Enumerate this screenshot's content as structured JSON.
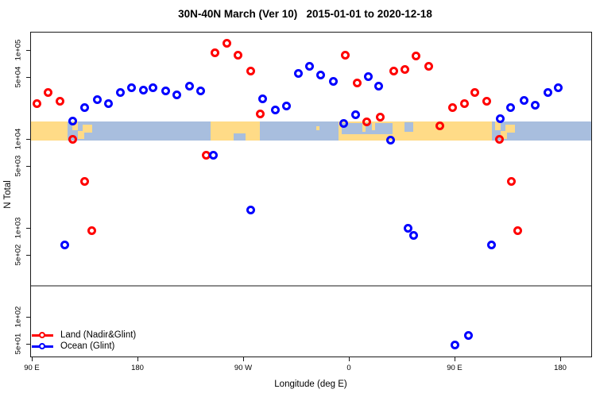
{
  "chart_data": {
    "type": "scatter",
    "title": "30N-40N March (Ver 10)   2015-01-01 to 2020-12-18",
    "xlabel": "Longitude (deg E)",
    "ylabel": "N Total",
    "y_scale": "log",
    "x_axis": {
      "range": [
        88.6,
        567
      ],
      "ticks": [
        {
          "pos": 90,
          "label": "90 E"
        },
        {
          "pos": 180,
          "label": "180"
        },
        {
          "pos": 270,
          "label": "90 W"
        },
        {
          "pos": 360,
          "label": "0"
        },
        {
          "pos": 450,
          "label": "90 E"
        },
        {
          "pos": 540,
          "label": "180"
        }
      ]
    },
    "y_axis": {
      "range": [
        35,
        160000
      ],
      "ticks": [
        {
          "value": 100000,
          "label": "1e+05"
        },
        {
          "value": 50000,
          "label": "5e+04"
        },
        {
          "value": 10000,
          "label": "1e+04"
        },
        {
          "value": 5000,
          "label": "5e+03"
        },
        {
          "value": 1000,
          "label": "1e+03"
        },
        {
          "value": 500,
          "label": "5e+02"
        },
        {
          "value": 100,
          "label": "1e+02"
        },
        {
          "value": 50,
          "label": "5e+01"
        }
      ]
    },
    "hline": {
      "value": 223,
      "color": "#8c8c8c"
    },
    "legend_position": "bottom-left",
    "series": [
      {
        "name": "Land (Nadir&Glint)",
        "color": "#ff0000",
        "points": [
          [
            94.7,
            25000
          ],
          [
            104.0,
            33000
          ],
          [
            114.0,
            26500
          ],
          [
            124.7,
            10000
          ],
          [
            135.0,
            3300
          ],
          [
            141.0,
            930
          ],
          [
            238.7,
            6600
          ],
          [
            246.3,
            94000
          ],
          [
            256.0,
            118000
          ],
          [
            265.9,
            87000
          ],
          [
            276.1,
            58000
          ],
          [
            284.4,
            19000
          ],
          [
            356.8,
            87000
          ],
          [
            366.9,
            43000
          ],
          [
            375.3,
            15500
          ],
          [
            386.8,
            17500
          ],
          [
            398.5,
            58000
          ],
          [
            407.5,
            60000
          ],
          [
            417.5,
            85000
          ],
          [
            427.8,
            65000
          ],
          [
            437.3,
            14000
          ],
          [
            448.6,
            22500
          ],
          [
            458.3,
            25000
          ],
          [
            467.3,
            33000
          ],
          [
            477.2,
            26500
          ],
          [
            488.0,
            10000
          ],
          [
            498.4,
            3300
          ],
          [
            504.1,
            940
          ]
        ]
      },
      {
        "name": "Ocean (Glint)",
        "color": "#0000ff",
        "points": [
          [
            117.9,
            645
          ],
          [
            124.7,
            16000
          ],
          [
            134.9,
            22500
          ],
          [
            145.7,
            27500
          ],
          [
            155.2,
            25000
          ],
          [
            165.3,
            33500
          ],
          [
            175.1,
            37500
          ],
          [
            185.2,
            35500
          ],
          [
            193.5,
            37300
          ],
          [
            204.1,
            34500
          ],
          [
            213.4,
            31000
          ],
          [
            224.4,
            39000
          ],
          [
            234.1,
            34700
          ],
          [
            244.3,
            6600
          ],
          [
            276.5,
            1600
          ],
          [
            286.9,
            28400
          ],
          [
            297.1,
            21300
          ],
          [
            306.6,
            23600
          ],
          [
            317.2,
            54000
          ],
          [
            326.4,
            66000
          ],
          [
            335.9,
            52000
          ],
          [
            346.7,
            44300
          ],
          [
            355.7,
            15000
          ],
          [
            365.6,
            18700
          ],
          [
            376.9,
            50000
          ],
          [
            385.7,
            39000
          ],
          [
            395.6,
            9700
          ],
          [
            410.1,
            990
          ],
          [
            415.3,
            820
          ],
          [
            450.2,
            48
          ],
          [
            462.0,
            62
          ],
          [
            481.6,
            640
          ],
          [
            488.7,
            17000
          ],
          [
            497.7,
            22500
          ],
          [
            509.5,
            27000
          ],
          [
            518.5,
            24000
          ],
          [
            529.3,
            33500
          ],
          [
            538.4,
            37500
          ]
        ]
      }
    ],
    "map_band": {
      "description": "30N-40N land/ocean strip",
      "value_range": [
        9500,
        15700
      ],
      "land_color": "#ffdb87",
      "ocean_color": "#a8bede",
      "base_segments": [
        {
          "from": 88.6,
          "to": 120.5,
          "type": "land"
        },
        {
          "from": 120.5,
          "to": 242,
          "type": "ocean"
        },
        {
          "from": 242,
          "to": 284,
          "type": "land"
        },
        {
          "from": 284,
          "to": 351,
          "type": "ocean"
        },
        {
          "from": 351,
          "to": 482,
          "type": "land"
        },
        {
          "from": 482,
          "to": 567,
          "type": "ocean"
        }
      ],
      "patches": [
        {
          "from": 124.5,
          "to": 129,
          "top": 0.0,
          "height": 0.45,
          "type": "land"
        },
        {
          "from": 129,
          "to": 134.5,
          "top": 0.5,
          "height": 0.4,
          "type": "land"
        },
        {
          "from": 133.5,
          "to": 141.5,
          "top": 0.18,
          "height": 0.38,
          "type": "land"
        },
        {
          "from": 262,
          "to": 272,
          "top": 0.62,
          "height": 0.38,
          "type": "ocean"
        },
        {
          "from": 332,
          "to": 335,
          "top": 0.25,
          "height": 0.18,
          "type": "land"
        },
        {
          "from": 354,
          "to": 397,
          "top": 0.06,
          "height": 0.6,
          "type": "ocean"
        },
        {
          "from": 371.5,
          "to": 374.5,
          "top": 0.1,
          "height": 0.42,
          "type": "land"
        },
        {
          "from": 379.5,
          "to": 382.5,
          "top": 0.1,
          "height": 0.35,
          "type": "land"
        },
        {
          "from": 407.5,
          "to": 414.5,
          "top": 0.05,
          "height": 0.5,
          "type": "ocean"
        },
        {
          "from": 484.5,
          "to": 489,
          "top": 0.0,
          "height": 0.45,
          "type": "land"
        },
        {
          "from": 489,
          "to": 494.5,
          "top": 0.5,
          "height": 0.4,
          "type": "land"
        },
        {
          "from": 493.5,
          "to": 501.5,
          "top": 0.18,
          "height": 0.38,
          "type": "land"
        }
      ]
    }
  }
}
